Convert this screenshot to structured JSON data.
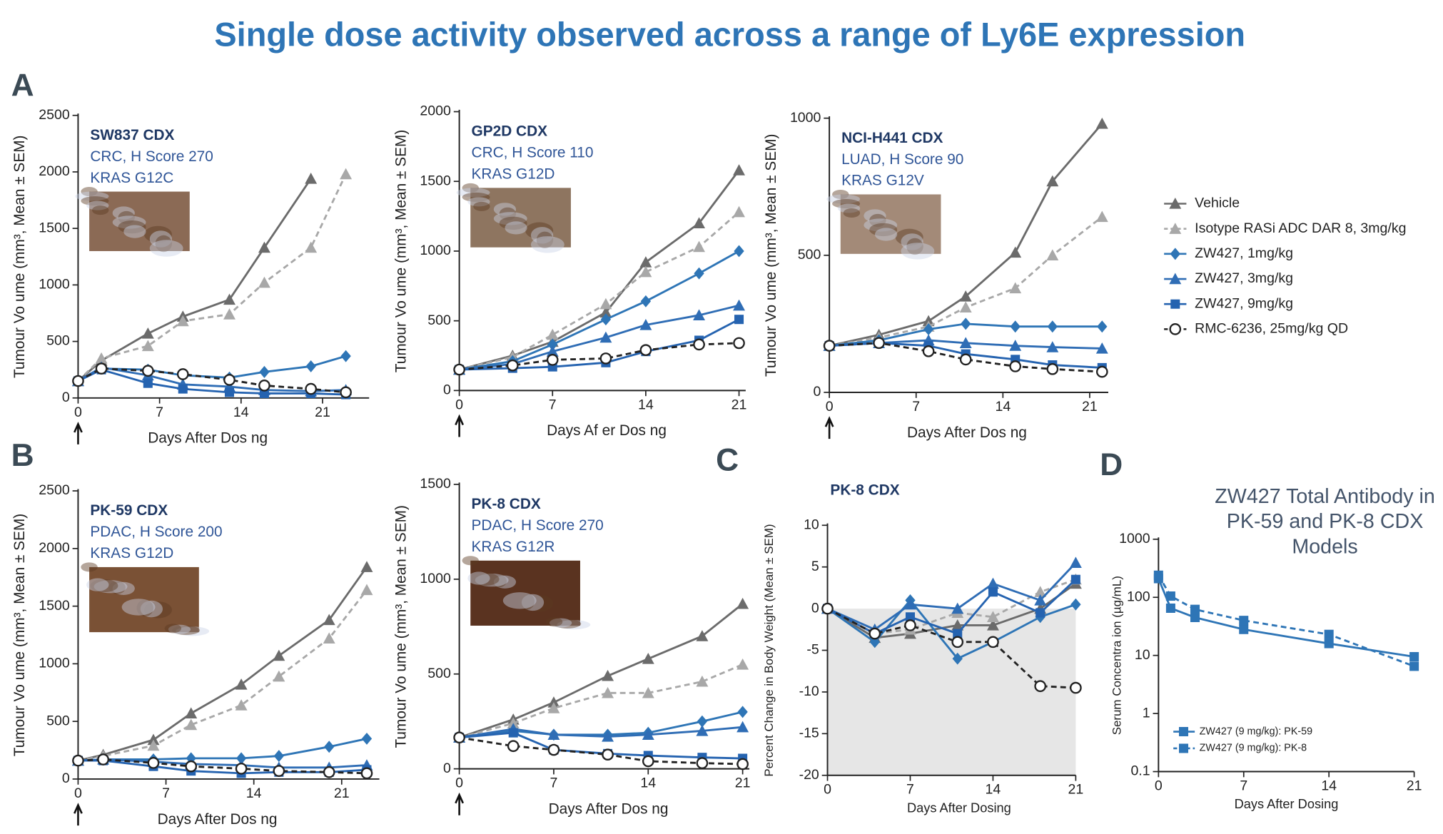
{
  "title": "Single dose activity observed across a range of Ly6E expression",
  "legend": {
    "series": [
      {
        "name": "Vehicle",
        "color": "#6b6b6b",
        "marker": "triangle",
        "dashed": false
      },
      {
        "name": "Isotype RASi ADC DAR 8, 3mg/kg",
        "color": "#a8a8a8",
        "marker": "triangle",
        "dashed": true
      },
      {
        "name": "ZW427, 1mg/kg",
        "color": "#2e75b6",
        "marker": "diamond",
        "dashed": false
      },
      {
        "name": "ZW427, 3mg/kg",
        "color": "#2f6db5",
        "marker": "triangle",
        "dashed": false
      },
      {
        "name": "ZW427, 9mg/kg",
        "color": "#2563b0",
        "marker": "square",
        "dashed": false
      },
      {
        "name": "RMC-6236, 25mg/kg  QD",
        "color": "#222222",
        "marker": "circle",
        "dashed": true
      }
    ]
  },
  "chart_data": [
    {
      "type": "line",
      "panel": "A",
      "annotations": [
        "SW837 CDX",
        "CRC, H Score 270",
        "KRAS G12C"
      ],
      "x_label": "Days After Dos ng",
      "y_label": "Tumour Vo ume (mm³, Mean ± SEM)",
      "xlim": [
        0,
        25
      ],
      "xticks": [
        0,
        7,
        14,
        21
      ],
      "ylim": [
        0,
        2500
      ],
      "yticks": [
        0,
        500,
        1000,
        1500,
        2000,
        2500
      ],
      "dose_arrow": true,
      "x": [
        0,
        2,
        6,
        9,
        13,
        16,
        20,
        23
      ],
      "series": [
        {
          "values": [
            150,
            330,
            570,
            720,
            870,
            1330,
            1940,
            null
          ]
        },
        {
          "values": [
            150,
            350,
            460,
            680,
            740,
            1020,
            1330,
            1980
          ]
        },
        {
          "values": [
            150,
            260,
            250,
            200,
            180,
            230,
            280,
            370
          ]
        },
        {
          "values": [
            150,
            270,
            200,
            120,
            100,
            70,
            60,
            70
          ]
        },
        {
          "values": [
            150,
            250,
            130,
            80,
            50,
            40,
            40,
            30
          ]
        },
        {
          "values": [
            150,
            260,
            240,
            210,
            160,
            110,
            80,
            50
          ]
        }
      ]
    },
    {
      "type": "line",
      "annotations": [
        "GP2D CDX",
        "CRC, H Score 110",
        "KRAS G12D"
      ],
      "x_label": "Days Af er Dos ng",
      "y_label": "Tumour Vo ume (mm³, Mean ± SEM)",
      "xlim": [
        0,
        21.5
      ],
      "xticks": [
        0,
        7,
        14,
        21
      ],
      "ylim": [
        0,
        2000
      ],
      "yticks": [
        0,
        500,
        1000,
        1500,
        2000
      ],
      "dose_arrow": true,
      "x": [
        0,
        4,
        7,
        11,
        14,
        18,
        21
      ],
      "series": [
        {
          "values": [
            150,
            250,
            350,
            560,
            920,
            1200,
            1580
          ]
        },
        {
          "values": [
            150,
            240,
            400,
            620,
            850,
            1030,
            1280
          ]
        },
        {
          "values": [
            150,
            210,
            330,
            510,
            640,
            840,
            1000
          ]
        },
        {
          "values": [
            150,
            190,
            280,
            380,
            470,
            540,
            610
          ]
        },
        {
          "values": [
            150,
            160,
            170,
            200,
            280,
            360,
            510
          ]
        },
        {
          "values": [
            150,
            180,
            220,
            230,
            290,
            330,
            340
          ]
        }
      ]
    },
    {
      "type": "line",
      "annotations": [
        "NCI-H441 CDX",
        "LUAD, H Score 90",
        "KRAS G12V"
      ],
      "x_label": "Days After Dos ng",
      "y_label": "Tumour Vo ume (mm³, Mean ± SEM)",
      "xlim": [
        0,
        22.5
      ],
      "xticks": [
        0,
        7,
        14,
        21
      ],
      "ylim": [
        0,
        1000
      ],
      "yticks": [
        0,
        500,
        1000
      ],
      "dose_arrow": true,
      "x": [
        0,
        4,
        8,
        11,
        15,
        18,
        22
      ],
      "series": [
        {
          "values": [
            170,
            210,
            260,
            350,
            510,
            770,
            980
          ]
        },
        {
          "values": [
            170,
            200,
            240,
            310,
            380,
            500,
            640
          ]
        },
        {
          "values": [
            170,
            190,
            230,
            250,
            240,
            240,
            240
          ]
        },
        {
          "values": [
            170,
            180,
            190,
            180,
            170,
            165,
            160
          ]
        },
        {
          "values": [
            170,
            180,
            170,
            140,
            120,
            100,
            90
          ]
        },
        {
          "values": [
            170,
            180,
            150,
            120,
            95,
            85,
            75
          ]
        }
      ]
    },
    {
      "type": "line",
      "panel": "B",
      "annotations": [
        "PK-59 CDX",
        "PDAC, H Score 200",
        "KRAS G12D"
      ],
      "x_label": "Days After Dos ng",
      "y_label": "Tumour Vo ume (mm³, Mean ± SEM)",
      "xlim": [
        0,
        24
      ],
      "xticks": [
        0,
        7,
        14,
        21
      ],
      "ylim": [
        0,
        2500
      ],
      "yticks": [
        0,
        500,
        1000,
        1500,
        2000,
        2500
      ],
      "dose_arrow": true,
      "x": [
        0,
        2,
        6,
        9,
        13,
        16,
        20,
        23
      ],
      "series": [
        {
          "values": [
            160,
            210,
            340,
            570,
            820,
            1070,
            1380,
            1840
          ]
        },
        {
          "values": [
            160,
            200,
            290,
            470,
            640,
            890,
            1220,
            1640
          ]
        },
        {
          "values": [
            160,
            170,
            170,
            180,
            180,
            200,
            280,
            350
          ]
        },
        {
          "values": [
            160,
            170,
            150,
            130,
            120,
            100,
            100,
            120
          ]
        },
        {
          "values": [
            160,
            160,
            110,
            70,
            50,
            60,
            60,
            80
          ]
        },
        {
          "values": [
            160,
            170,
            140,
            110,
            90,
            70,
            60,
            50
          ]
        }
      ]
    },
    {
      "type": "line",
      "annotations": [
        "PK-8 CDX",
        "PDAC, H Score 270",
        "KRAS G12R"
      ],
      "x_label": "Days After Dos ng",
      "y_label": "Tumour Vo ume (mm³, Mean ± SEM)",
      "xlim": [
        0,
        21.5
      ],
      "xticks": [
        0,
        7,
        14,
        21
      ],
      "ylim": [
        0,
        1500
      ],
      "yticks": [
        0,
        500,
        1000,
        1500
      ],
      "dose_arrow": true,
      "x": [
        0,
        4,
        7,
        11,
        14,
        18,
        21
      ],
      "series": [
        {
          "values": [
            165,
            260,
            350,
            490,
            580,
            700,
            870
          ]
        },
        {
          "values": [
            165,
            240,
            320,
            400,
            400,
            460,
            550
          ]
        },
        {
          "values": [
            165,
            200,
            180,
            180,
            190,
            250,
            300
          ]
        },
        {
          "values": [
            165,
            210,
            180,
            170,
            180,
            200,
            220
          ]
        },
        {
          "values": [
            165,
            190,
            100,
            80,
            70,
            60,
            55
          ]
        },
        {
          "values": [
            165,
            120,
            100,
            75,
            40,
            30,
            25
          ]
        }
      ]
    },
    {
      "type": "line",
      "panel": "C",
      "annotations": [
        "PK-8 CDX"
      ],
      "x_label": "Days After Dosing",
      "y_label": "Percent Change in Body Weight (Mean ± SEM)",
      "xlim": [
        0,
        21
      ],
      "xticks": [
        0,
        7,
        14,
        21
      ],
      "ylim": [
        -20,
        10
      ],
      "yticks": [
        10,
        5,
        0,
        -5,
        -10,
        -15,
        -20
      ],
      "shade_below_zero": true,
      "x": [
        0,
        4,
        7,
        11,
        14,
        18,
        21
      ],
      "series": [
        {
          "values": [
            0,
            -3.5,
            -3,
            -2,
            -2,
            0,
            3
          ]
        },
        {
          "values": [
            0,
            -3,
            -2.5,
            -0.5,
            -1,
            2,
            3.5
          ]
        },
        {
          "values": [
            0,
            -4,
            1,
            -6,
            -4,
            -1,
            0.5
          ]
        },
        {
          "values": [
            0,
            -2.5,
            0.5,
            0,
            3,
            1,
            5.5
          ]
        },
        {
          "values": [
            0,
            -3,
            -1,
            -3,
            2,
            -0.5,
            3.5
          ]
        },
        {
          "values": [
            0,
            -3,
            -2,
            -4,
            -4,
            -9.3,
            -9.5
          ]
        }
      ]
    },
    {
      "type": "line",
      "panel": "D",
      "title": "ZW427 Total Antibody in PK-59 and PK-8 CDX Models",
      "x_label": "Days After Dosing",
      "y_label": "Serum Concentra ion (µg/mL)",
      "xlim": [
        0,
        21
      ],
      "xticks": [
        0,
        7,
        14,
        21
      ],
      "ylim": [
        0.1,
        1000
      ],
      "yticks": [
        1000,
        100,
        10,
        1,
        0.1
      ],
      "log_y": true,
      "x": [
        0,
        1,
        3,
        7,
        14,
        21
      ],
      "series": [
        {
          "name": "ZW427 (9 mg/kg): PK-59",
          "color": "#2e75b6",
          "marker": "square",
          "dashed": false,
          "values": [
            210,
            65,
            45,
            28,
            16,
            9.5
          ]
        },
        {
          "name": "ZW427 (9 mg/kg): PK-8",
          "color": "#2e75b6",
          "marker": "square",
          "dashed": true,
          "values": [
            240,
            105,
            62,
            40,
            23,
            6.5
          ]
        }
      ]
    }
  ]
}
